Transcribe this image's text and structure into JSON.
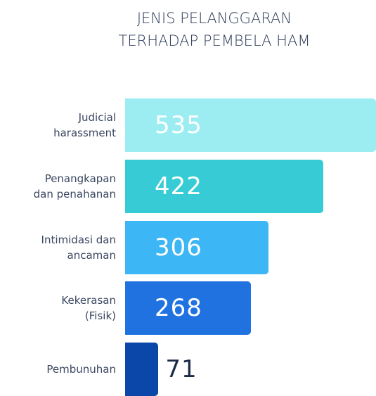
{
  "chart_data": {
    "type": "bar",
    "orientation": "horizontal",
    "title": [
      "JENIS PELANGGARAN",
      "TERHADAP PEMBELA HAM"
    ],
    "categories": [
      "Judicial\nharassment",
      "Penangkapan\ndan penahanan",
      "Intimidasi dan\nancaman",
      "Kekerasan\n(Fisik)",
      "Pembunuhan"
    ],
    "values": [
      535,
      422,
      306,
      268,
      71
    ],
    "colors": [
      "#9cedf2",
      "#37ccd5",
      "#3db6f5",
      "#1f72e0",
      "#0b46a9"
    ]
  }
}
